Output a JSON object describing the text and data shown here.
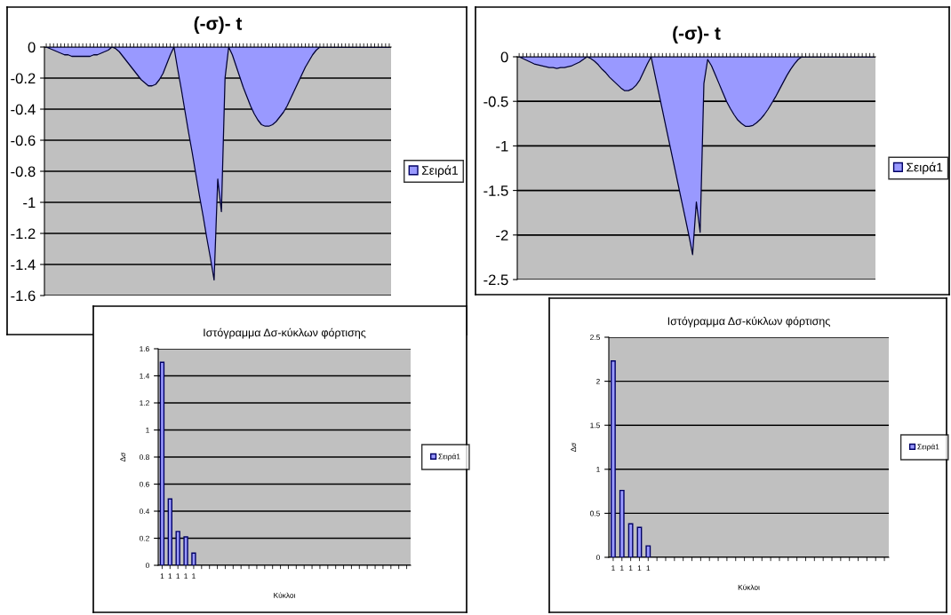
{
  "chart_data": [
    {
      "type": "area",
      "title": "(-σ)- t",
      "categories": [
        null,
        null,
        null,
        null,
        null,
        null,
        null,
        null,
        null,
        null,
        null,
        null,
        null,
        null,
        null,
        null,
        null,
        null,
        null,
        null,
        null,
        null,
        null,
        null,
        null,
        null,
        null,
        null,
        null,
        null,
        null,
        null,
        null,
        null,
        null,
        null,
        null,
        null,
        null,
        null,
        null,
        null,
        null,
        null,
        null,
        null,
        null,
        null,
        null,
        null,
        null,
        null,
        null,
        null,
        null,
        null,
        null,
        null,
        null,
        null,
        null,
        null,
        null,
        null,
        null,
        null,
        null,
        null,
        null,
        null,
        null,
        null,
        null,
        null,
        null,
        null,
        null,
        null,
        null,
        null,
        null,
        null,
        null,
        null,
        null,
        null,
        null,
        null,
        null,
        null,
        null,
        null,
        null,
        null,
        null
      ],
      "series": [
        {
          "name": "Σειρά1",
          "color": "#9999ff",
          "values": [
            0,
            -0.01,
            -0.02,
            -0.03,
            -0.04,
            -0.05,
            -0.05,
            -0.06,
            -0.06,
            -0.06,
            -0.06,
            -0.06,
            -0.06,
            -0.05,
            -0.05,
            -0.04,
            -0.03,
            -0.02,
            0,
            -0.01,
            -0.03,
            -0.06,
            -0.09,
            -0.12,
            -0.15,
            -0.18,
            -0.21,
            -0.23,
            -0.25,
            -0.25,
            -0.24,
            -0.21,
            -0.17,
            -0.11,
            -0.05,
            0,
            -0.14,
            -0.27,
            -0.41,
            -0.55,
            -0.68,
            -0.82,
            -0.96,
            -1.09,
            -1.23,
            -1.36,
            -1.5,
            -0.85,
            -1.06,
            -0.2,
            0,
            -0.05,
            -0.12,
            -0.19,
            -0.26,
            -0.32,
            -0.38,
            -0.43,
            -0.47,
            -0.5,
            -0.51,
            -0.51,
            -0.5,
            -0.48,
            -0.45,
            -0.42,
            -0.38,
            -0.33,
            -0.28,
            -0.23,
            -0.18,
            -0.13,
            -0.09,
            -0.05,
            -0.02,
            0,
            0,
            0,
            0,
            0,
            0,
            0,
            0,
            0,
            0,
            0,
            0,
            0,
            0,
            0,
            0,
            0,
            0,
            0,
            0
          ]
        }
      ],
      "ylim": [
        -1.6,
        0
      ],
      "yticks": [
        0,
        -0.2,
        -0.4,
        -0.6,
        -0.8,
        -1,
        -1.2,
        -1.4,
        -1.6
      ],
      "grid": "y",
      "legend": "right",
      "tick_labels": "y"
    },
    {
      "type": "area",
      "title": "(-σ)- t",
      "categories": [
        null,
        null,
        null,
        null,
        null,
        null,
        null,
        null,
        null,
        null,
        null,
        null,
        null,
        null,
        null,
        null,
        null,
        null,
        null,
        null,
        null,
        null,
        null,
        null,
        null,
        null,
        null,
        null,
        null,
        null,
        null,
        null,
        null,
        null,
        null,
        null,
        null,
        null,
        null,
        null,
        null,
        null,
        null,
        null,
        null,
        null,
        null,
        null,
        null,
        null,
        null,
        null,
        null,
        null,
        null,
        null,
        null,
        null,
        null,
        null,
        null,
        null,
        null,
        null,
        null,
        null,
        null,
        null,
        null,
        null,
        null,
        null,
        null,
        null,
        null,
        null,
        null,
        null,
        null,
        null,
        null,
        null,
        null,
        null,
        null,
        null,
        null,
        null,
        null,
        null,
        null,
        null,
        null,
        null,
        null
      ],
      "series": [
        {
          "name": "Σειρά1",
          "color": "#9999ff",
          "values": [
            0,
            -0.02,
            -0.04,
            -0.06,
            -0.08,
            -0.09,
            -0.1,
            -0.11,
            -0.12,
            -0.12,
            -0.13,
            -0.12,
            -0.12,
            -0.11,
            -0.1,
            -0.08,
            -0.06,
            -0.03,
            0,
            -0.02,
            -0.05,
            -0.09,
            -0.14,
            -0.18,
            -0.23,
            -0.27,
            -0.31,
            -0.35,
            -0.38,
            -0.38,
            -0.36,
            -0.32,
            -0.26,
            -0.17,
            -0.08,
            0,
            -0.2,
            -0.4,
            -0.6,
            -0.8,
            -1.0,
            -1.2,
            -1.4,
            -1.6,
            -1.8,
            -2.0,
            -2.22,
            -1.63,
            -1.97,
            -0.3,
            -0.03,
            -0.1,
            -0.2,
            -0.3,
            -0.4,
            -0.5,
            -0.58,
            -0.65,
            -0.71,
            -0.75,
            -0.78,
            -0.78,
            -0.77,
            -0.74,
            -0.7,
            -0.65,
            -0.59,
            -0.52,
            -0.45,
            -0.37,
            -0.29,
            -0.21,
            -0.14,
            -0.08,
            -0.03,
            0,
            0,
            0,
            0,
            0,
            0,
            0,
            0,
            0,
            0,
            0,
            0,
            0,
            0,
            0,
            0,
            0,
            0,
            0,
            0
          ]
        }
      ],
      "ylim": [
        -2.5,
        0
      ],
      "yticks": [
        0,
        -0.5,
        -1,
        -1.5,
        -2,
        -2.5
      ],
      "grid": "y",
      "legend": "right",
      "tick_labels": "y"
    },
    {
      "type": "bar",
      "title": "Ιστόγραμμα Δσ-κύκλων φόρτισης",
      "xlabel": "Κύκλοι",
      "ylabel": "Δσ",
      "categories": [
        "1",
        "1",
        "1",
        "1",
        "1",
        null,
        null,
        null,
        null,
        null,
        null,
        null,
        null,
        null,
        null,
        null,
        null,
        null,
        null,
        null,
        null,
        null,
        null,
        null,
        null,
        null,
        null,
        null,
        null,
        null,
        null,
        null
      ],
      "series": [
        {
          "name": "Σειρά1",
          "color": "#9999ff",
          "values": [
            1.5,
            0.49,
            0.25,
            0.21,
            0.09,
            null,
            null,
            null,
            null,
            null,
            null,
            null,
            null,
            null,
            null,
            null,
            null,
            null,
            null,
            null,
            null,
            null,
            null,
            null,
            null,
            null,
            null,
            null,
            null,
            null,
            null,
            null
          ]
        }
      ],
      "ylim": [
        0,
        1.6
      ],
      "yticks": [
        0,
        0.2,
        0.4,
        0.6,
        0.8,
        1,
        1.2,
        1.4,
        1.6
      ],
      "grid": "y",
      "legend": "right"
    },
    {
      "type": "bar",
      "title": "Ιστόγραμμα Δσ-κύκλων φόρτισης",
      "xlabel": "Κύκλοι",
      "ylabel": "Δσ",
      "categories": [
        "1",
        "1",
        "1",
        "1",
        "1",
        null,
        null,
        null,
        null,
        null,
        null,
        null,
        null,
        null,
        null,
        null,
        null,
        null,
        null,
        null,
        null,
        null,
        null,
        null,
        null,
        null,
        null,
        null,
        null,
        null,
        null,
        null
      ],
      "series": [
        {
          "name": "Σειρά1",
          "color": "#9999ff",
          "values": [
            2.23,
            0.76,
            0.38,
            0.34,
            0.13,
            null,
            null,
            null,
            null,
            null,
            null,
            null,
            null,
            null,
            null,
            null,
            null,
            null,
            null,
            null,
            null,
            null,
            null,
            null,
            null,
            null,
            null,
            null,
            null,
            null,
            null,
            null
          ]
        }
      ],
      "ylim": [
        0,
        2.5
      ],
      "yticks": [
        0,
        0.5,
        1,
        1.5,
        2,
        2.5
      ],
      "grid": "y",
      "legend": "right"
    }
  ]
}
